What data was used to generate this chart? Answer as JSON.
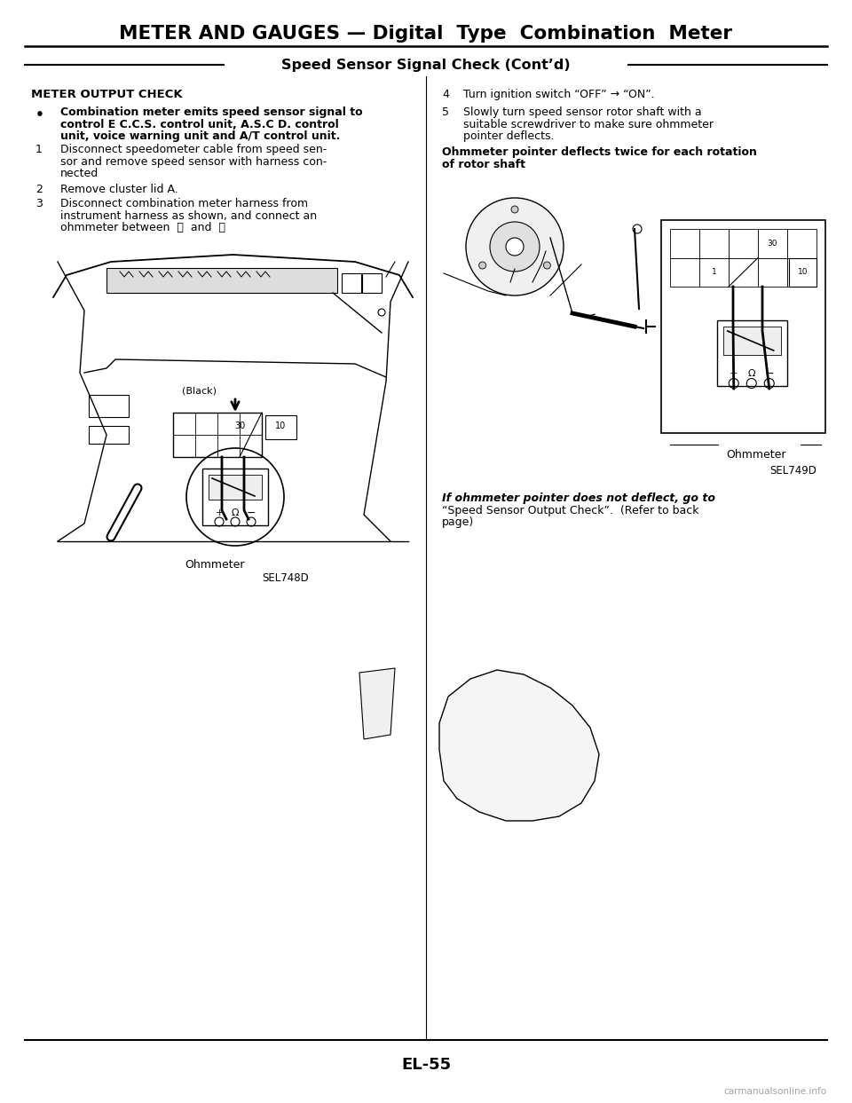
{
  "title": "METER AND GAUGES — Digital  Type  Combination  Meter",
  "subtitle": "Speed Sensor Signal Check (Cont’d)",
  "page_number": "EL-55",
  "watermark": "carmanualsonline.info",
  "bg_color": "#ffffff",
  "text_color": "#000000",
  "left_heading": "METER OUTPUT CHECK",
  "left_bullet": [
    "Combination meter emits speed sensor signal to",
    "control E C.C.S. control unit, A.S.C D. control",
    "unit, voice warning unit and A/T control unit."
  ],
  "left_items": [
    [
      "Disconnect speedometer cable from speed sen-",
      "sor and remove speed sensor with harness con-",
      "nected"
    ],
    [
      "Remove cluster lid A."
    ],
    [
      "Disconnect combination meter harness from",
      "instrument harness as shown, and connect an",
      "ohmmeter between  ⓙ  and  ⑯"
    ]
  ],
  "left_diag_label": "Ohmmeter",
  "left_diag_code": "SEL748D",
  "right_item4": [
    "Turn ignition switch “OFF” → “ON”."
  ],
  "right_item5": [
    "Slowly turn speed sensor rotor shaft with a",
    "suitable screwdriver to make sure ohmmeter",
    "pointer deflects."
  ],
  "right_bold": [
    "Ohmmeter pointer deflects twice for each rotation",
    "of rotor shaft"
  ],
  "right_diag_label": "Ohmmeter",
  "right_diag_code": "SEL749D",
  "right_note": [
    "If ohmmeter pointer does not deflect, go to",
    "“Speed Sensor Output Check”.  (Refer to back",
    "page)"
  ]
}
